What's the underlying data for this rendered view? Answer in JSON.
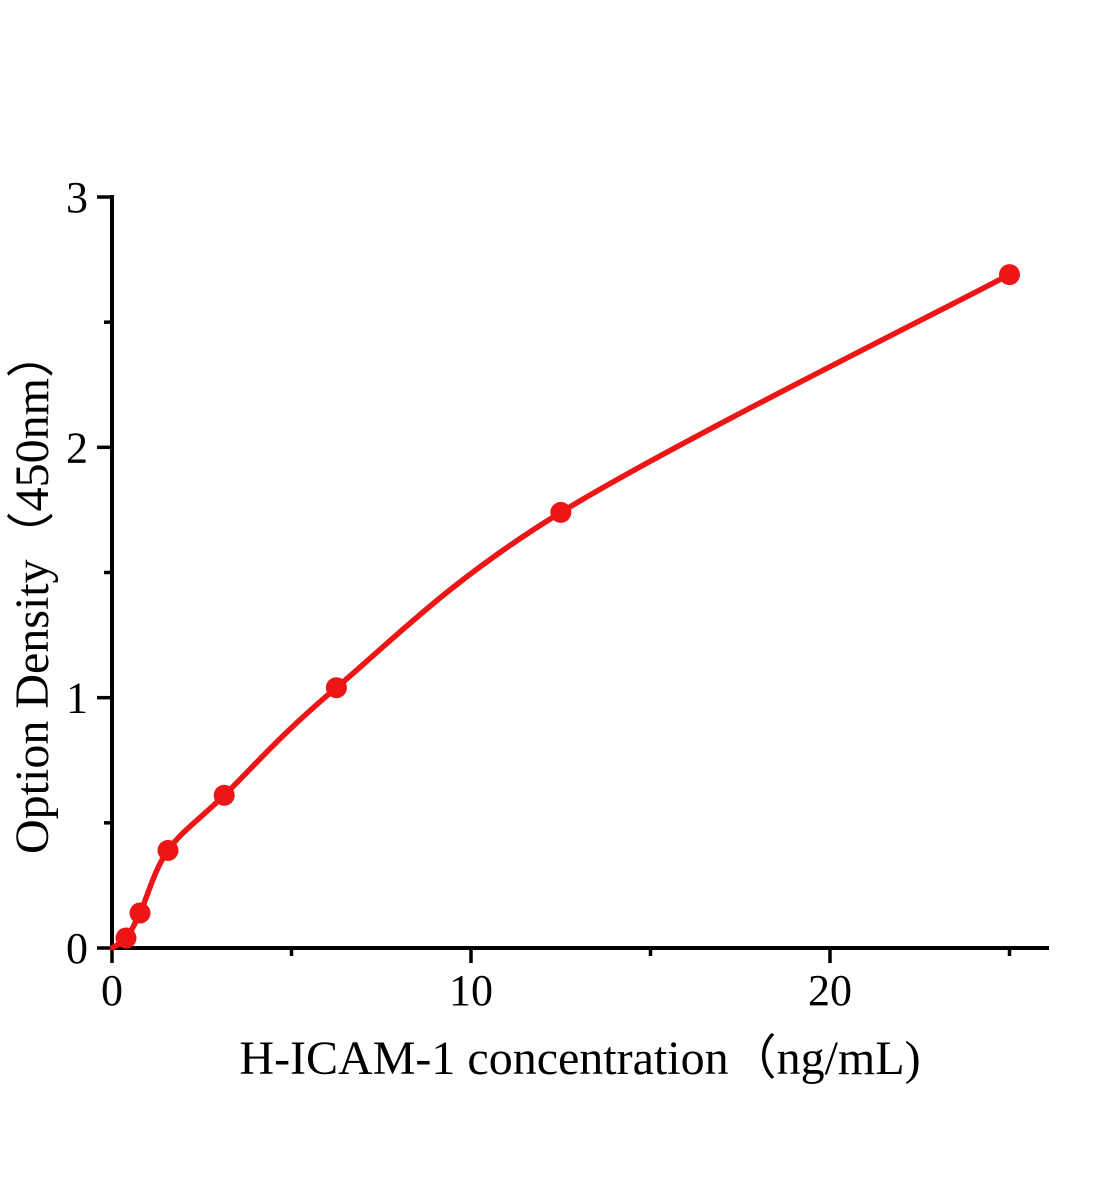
{
  "figure": {
    "background_color": "#ffffff",
    "axis_color": "#000000",
    "accent_color": "#ed1515"
  },
  "chart_data": {
    "type": "scatter",
    "title": "",
    "xlabel": "H-ICAM-1 concentration（ng/mL)",
    "ylabel": "Option Density（450nm）",
    "x": [
      0.39,
      0.78,
      1.56,
      3.125,
      6.25,
      12.5,
      25
    ],
    "y": [
      0.04,
      0.14,
      0.39,
      0.61,
      1.04,
      1.74,
      2.69
    ],
    "marker": "filled-circle",
    "marker_color": "#ed1515",
    "fit_line": true,
    "fit_line_color": "#ed1515",
    "fit_starts_at_origin": true,
    "xlim": [
      0,
      26.1
    ],
    "ylim": [
      0,
      3.01
    ],
    "x_major_ticks": [
      0,
      10,
      20
    ],
    "x_minor_ticks": [
      5,
      15,
      25
    ],
    "y_major_ticks": [
      0,
      1,
      2,
      3
    ],
    "y_minor_ticks": [
      0.5,
      1.5,
      2.5
    ],
    "grid": false,
    "legend": false
  }
}
